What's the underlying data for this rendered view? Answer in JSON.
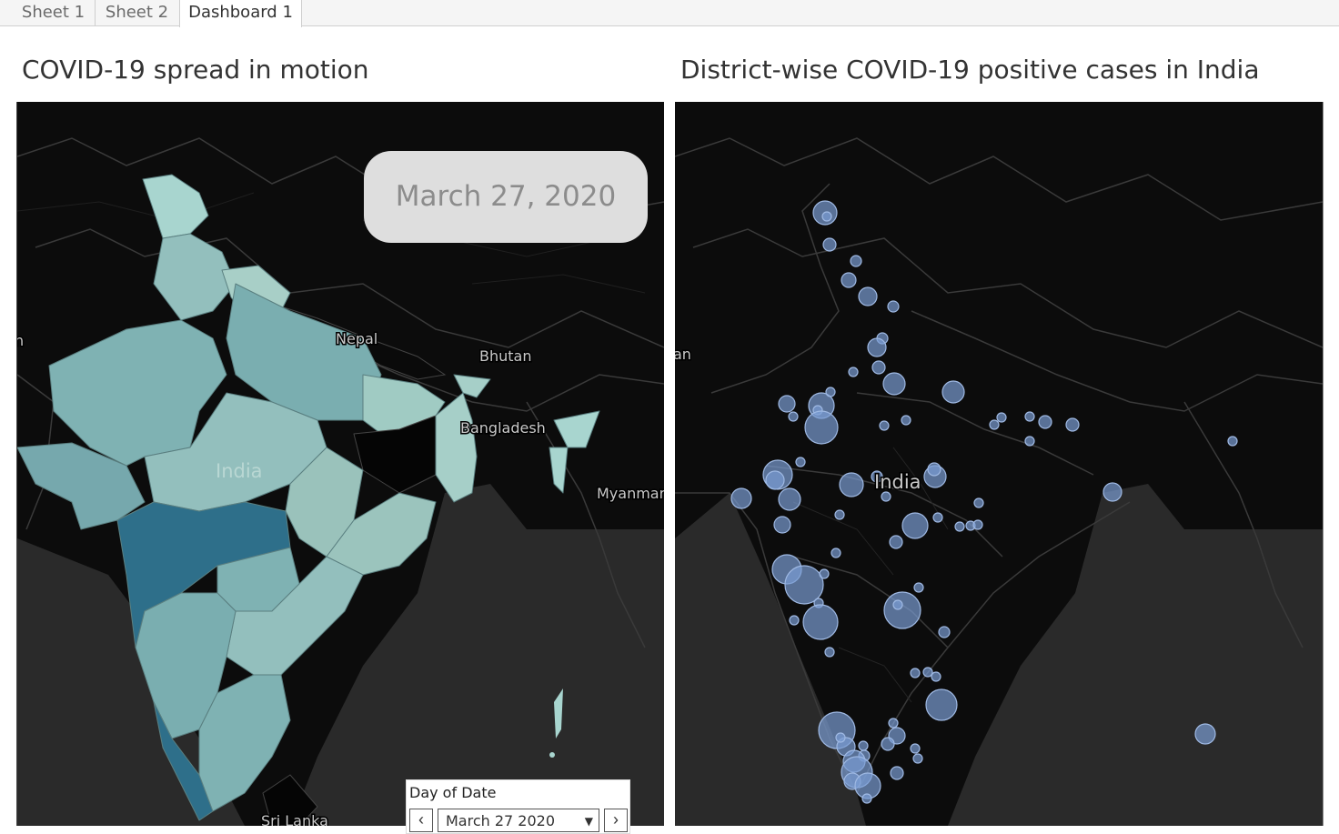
{
  "tabs": [
    "Sheet 1",
    "Sheet 2",
    "Dashboard 1"
  ],
  "active_tab": "Dashboard 1",
  "left_map": {
    "title": "COVID-19 spread in motion",
    "labels": [
      "Nepal",
      "Bhutan",
      "Bangladesh",
      "India",
      "Myanmar",
      "Sri Lanka",
      "n"
    ],
    "date_display": "March 27, 2020",
    "colors": {
      "light": "#a8d5cf",
      "mid": "#7fb2b3",
      "dark": "#2e6f8a",
      "darker": "#3a7f98",
      "none": "#050505"
    }
  },
  "right_map": {
    "title": "District-wise COVID-19 positive cases in India",
    "labels": [
      "India",
      "an"
    ],
    "bubble_color": "#7b9cd3"
  },
  "date_filter": {
    "label": "Day of Date",
    "value": "March 27 2020",
    "prev_icon": "‹",
    "next_icon": "›",
    "dropdown_icon": "▼"
  }
}
